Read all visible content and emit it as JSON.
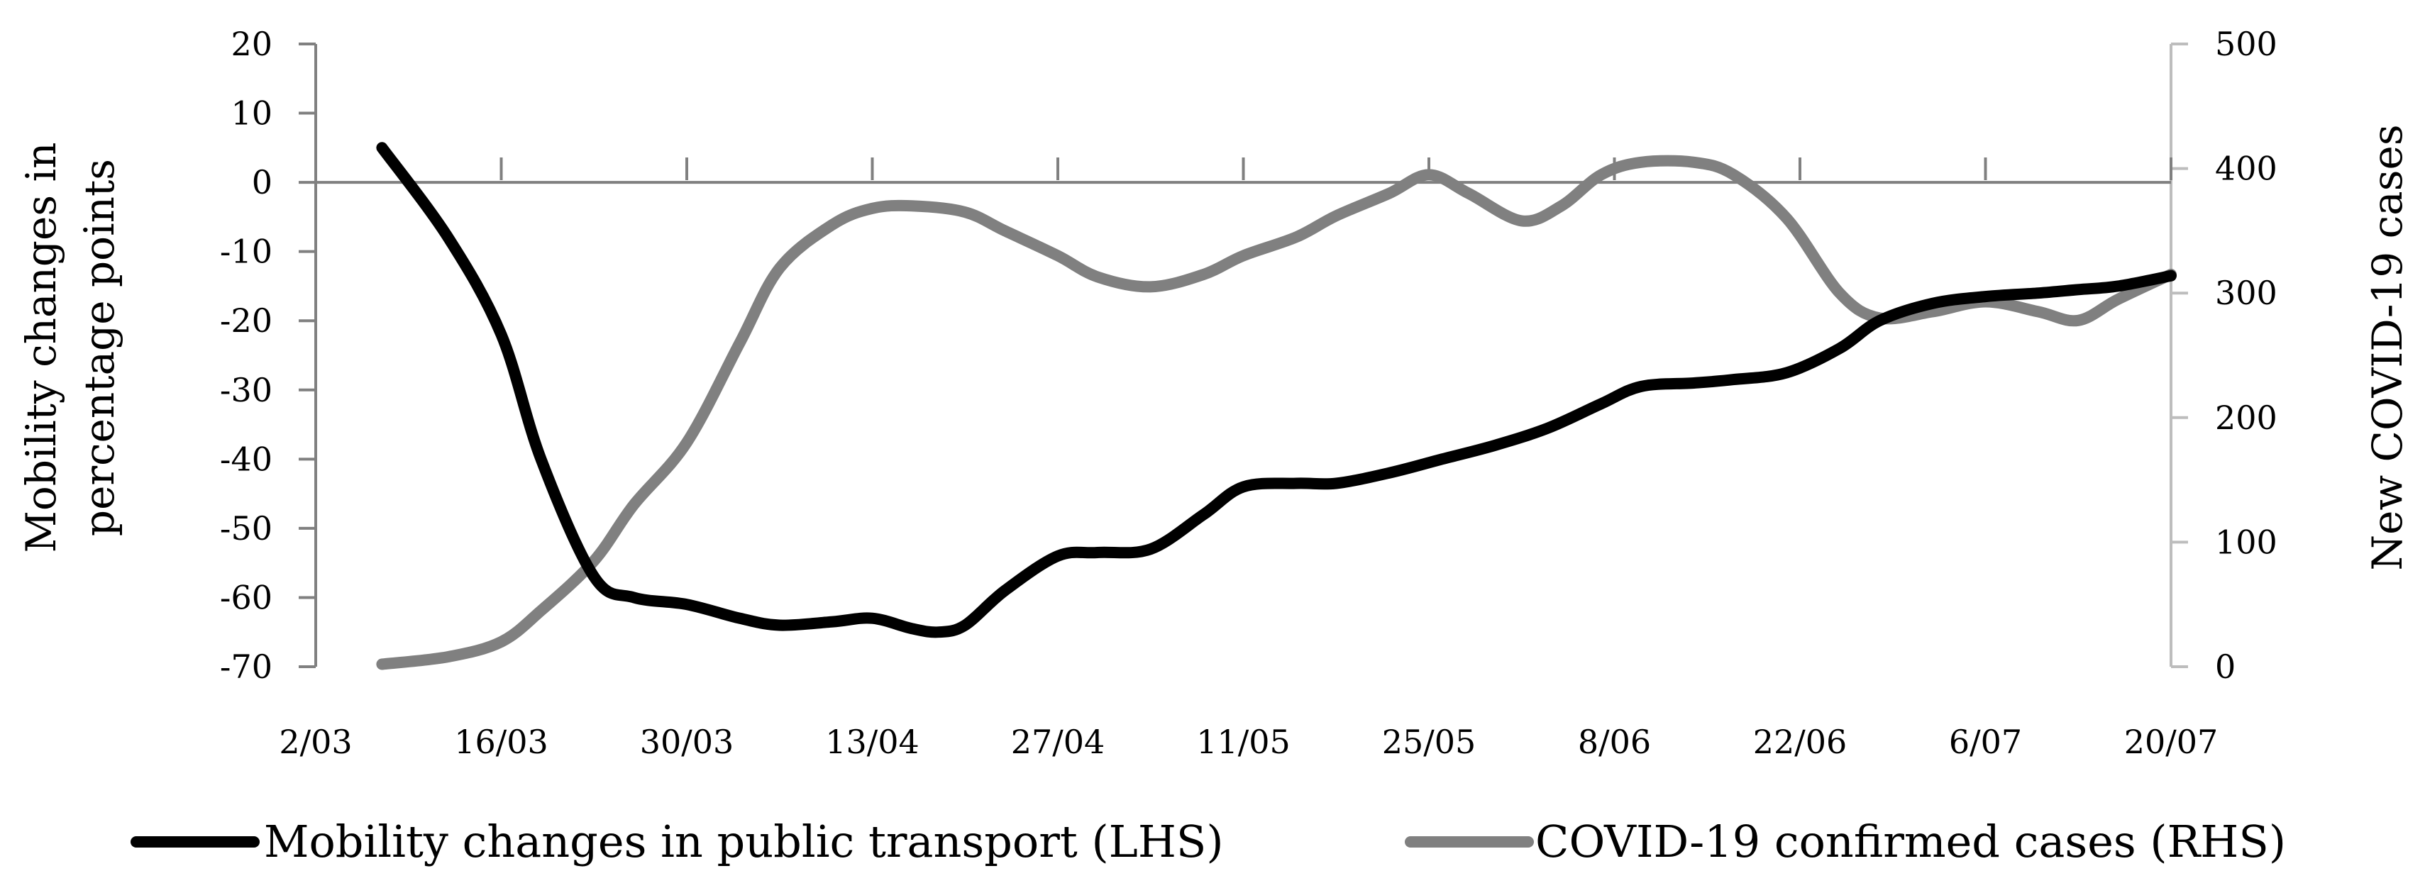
{
  "chart_data": {
    "type": "line",
    "title": "",
    "x_tick_labels": [
      "2/03",
      "16/03",
      "30/03",
      "13/04",
      "27/04",
      "11/05",
      "25/05",
      "8/06",
      "22/06",
      "6/07",
      "20/07"
    ],
    "x_range": [
      "2020-03-02",
      "2020-07-20"
    ],
    "y_left": {
      "label_lines": [
        "Mobility changes in",
        "percentage points"
      ],
      "range": [
        -70,
        20
      ],
      "ticks": [
        20,
        10,
        0,
        -10,
        -20,
        -30,
        -40,
        -50,
        -60,
        -70
      ]
    },
    "y_right": {
      "label": "New COVID-19 cases",
      "range": [
        0,
        500
      ],
      "ticks": [
        500,
        400,
        300,
        200,
        100,
        0
      ]
    },
    "grid": false,
    "legend_position": "bottom",
    "series": [
      {
        "name": "Mobility changes in public transport (LHS)",
        "axis": "left",
        "color": "#000000",
        "x": [
          "2020-03-07",
          "2020-03-12",
          "2020-03-16",
          "2020-03-19",
          "2020-03-23",
          "2020-03-26",
          "2020-03-30",
          "2020-04-03",
          "2020-04-06",
          "2020-04-10",
          "2020-04-13",
          "2020-04-16",
          "2020-04-18",
          "2020-04-20",
          "2020-04-23",
          "2020-04-27",
          "2020-04-30",
          "2020-05-04",
          "2020-05-08",
          "2020-05-11",
          "2020-05-15",
          "2020-05-18",
          "2020-05-22",
          "2020-05-26",
          "2020-05-30",
          "2020-06-03",
          "2020-06-07",
          "2020-06-10",
          "2020-06-14",
          "2020-06-17",
          "2020-06-21",
          "2020-06-25",
          "2020-06-28",
          "2020-07-02",
          "2020-07-06",
          "2020-07-10",
          "2020-07-13",
          "2020-07-16",
          "2020-07-20"
        ],
        "values": [
          5,
          -8,
          -22,
          -40,
          -57,
          -60,
          -61,
          -63,
          -64,
          -63.5,
          -63,
          -64.5,
          -65,
          -64,
          -59,
          -54,
          -53.5,
          -53,
          -48,
          -44,
          -43.5,
          -43.5,
          -42,
          -40,
          -38,
          -35.5,
          -32,
          -29.5,
          -29,
          -28.5,
          -27.5,
          -24,
          -20,
          -17.5,
          -16.5,
          -16,
          -15.5,
          -15,
          -13.5
        ]
      },
      {
        "name": "COVID-19 confirmed cases (RHS)",
        "axis": "right",
        "color": "#808080",
        "x": [
          "2020-03-07",
          "2020-03-12",
          "2020-03-16",
          "2020-03-19",
          "2020-03-23",
          "2020-03-26",
          "2020-03-30",
          "2020-04-03",
          "2020-04-06",
          "2020-04-10",
          "2020-04-13",
          "2020-04-16",
          "2020-04-20",
          "2020-04-23",
          "2020-04-27",
          "2020-04-30",
          "2020-05-04",
          "2020-05-08",
          "2020-05-11",
          "2020-05-15",
          "2020-05-18",
          "2020-05-22",
          "2020-05-25",
          "2020-05-28",
          "2020-06-01",
          "2020-06-04",
          "2020-06-07",
          "2020-06-10",
          "2020-06-14",
          "2020-06-17",
          "2020-06-21",
          "2020-06-25",
          "2020-06-28",
          "2020-07-02",
          "2020-07-06",
          "2020-07-10",
          "2020-07-13",
          "2020-07-16",
          "2020-07-20"
        ],
        "values": [
          2,
          8,
          20,
          45,
          85,
          130,
          180,
          260,
          320,
          355,
          368,
          370,
          365,
          350,
          330,
          313,
          305,
          315,
          330,
          345,
          362,
          380,
          395,
          380,
          358,
          370,
          395,
          405,
          405,
          395,
          360,
          300,
          280,
          285,
          293,
          285,
          278,
          295,
          315
        ]
      }
    ]
  }
}
